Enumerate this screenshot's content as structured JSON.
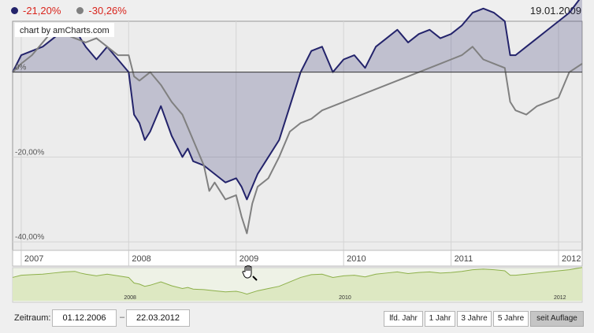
{
  "legend": {
    "series_a": {
      "value": "-21,20%",
      "color": "#23236b"
    },
    "series_b": {
      "value": "-30,26%",
      "color": "#808080"
    }
  },
  "cursor_date": "19.01.2009",
  "watermark": "chart by amCharts.com",
  "chart_data": {
    "type": "line",
    "title": "",
    "y_unit": "%",
    "ylim": [
      -42,
      12
    ],
    "y_ticks": [
      {
        "value": 0,
        "label": "0%"
      },
      {
        "value": -20,
        "label": "-20,00%"
      },
      {
        "value": -40,
        "label": "-40,00%"
      }
    ],
    "x_range": [
      2006.92,
      2012.22
    ],
    "x_ticks": [
      "2007",
      "2008",
      "2009",
      "2010",
      "2011",
      "2012"
    ],
    "x_tick_values": [
      2007,
      2008,
      2009,
      2010,
      2011,
      2012
    ],
    "series": [
      {
        "name": "series_a",
        "color": "#23236b",
        "fill": "rgba(35,35,107,0.22)",
        "x": [
          2006.92,
          2007.0,
          2007.1,
          2007.2,
          2007.3,
          2007.4,
          2007.5,
          2007.55,
          2007.6,
          2007.7,
          2007.8,
          2007.9,
          2008.0,
          2008.05,
          2008.1,
          2008.15,
          2008.2,
          2008.3,
          2008.4,
          2008.5,
          2008.55,
          2008.6,
          2008.7,
          2008.8,
          2008.9,
          2009.0,
          2009.05,
          2009.1,
          2009.2,
          2009.3,
          2009.4,
          2009.5,
          2009.6,
          2009.7,
          2009.8,
          2009.9,
          2010.0,
          2010.1,
          2010.2,
          2010.3,
          2010.4,
          2010.5,
          2010.6,
          2010.7,
          2010.8,
          2010.9,
          2011.0,
          2011.1,
          2011.2,
          2011.3,
          2011.4,
          2011.5,
          2011.55,
          2011.6,
          2011.7,
          2011.8,
          2011.9,
          2012.0,
          2012.1,
          2012.22
        ],
        "values": [
          0,
          4,
          5,
          6,
          8,
          10,
          11,
          8,
          6,
          3,
          6,
          3,
          0,
          -10,
          -12,
          -16,
          -14,
          -8,
          -15,
          -20,
          -18,
          -21,
          -22,
          -24,
          -26,
          -25,
          -27,
          -30,
          -24,
          -20,
          -16,
          -8,
          0,
          5,
          6,
          0,
          3,
          4,
          1,
          6,
          8,
          10,
          7,
          9,
          10,
          8,
          9,
          11,
          14,
          15,
          14,
          12,
          4,
          4,
          6,
          8,
          10,
          12,
          14,
          18
        ]
      },
      {
        "name": "series_b",
        "color": "#808080",
        "fill": "none",
        "x": [
          2006.92,
          2007.0,
          2007.1,
          2007.2,
          2007.3,
          2007.4,
          2007.5,
          2007.6,
          2007.7,
          2007.8,
          2007.9,
          2008.0,
          2008.05,
          2008.1,
          2008.2,
          2008.3,
          2008.4,
          2008.5,
          2008.6,
          2008.7,
          2008.75,
          2008.8,
          2008.9,
          2009.0,
          2009.05,
          2009.1,
          2009.15,
          2009.2,
          2009.3,
          2009.4,
          2009.5,
          2009.6,
          2009.7,
          2009.8,
          2009.9,
          2010.0,
          2010.1,
          2010.2,
          2010.3,
          2010.4,
          2010.5,
          2010.6,
          2010.7,
          2010.8,
          2010.9,
          2011.0,
          2011.1,
          2011.2,
          2011.3,
          2011.4,
          2011.5,
          2011.55,
          2011.6,
          2011.7,
          2011.8,
          2011.9,
          2012.0,
          2012.1,
          2012.22
        ],
        "values": [
          0,
          2,
          4,
          7,
          10,
          9,
          8,
          7,
          8,
          6,
          4,
          4,
          -1,
          -2,
          0,
          -3,
          -7,
          -10,
          -16,
          -22,
          -28,
          -26,
          -30,
          -29,
          -34,
          -38,
          -31,
          -27,
          -25,
          -20,
          -14,
          -12,
          -11,
          -9,
          -8,
          -7,
          -6,
          -5,
          -4,
          -3,
          -2,
          -1,
          0,
          1,
          2,
          3,
          4,
          6,
          3,
          2,
          1,
          -7,
          -9,
          -10,
          -8,
          -7,
          -6,
          0,
          2
        ]
      }
    ]
  },
  "navigator": {
    "x_ticks": [
      "2008",
      "2010",
      "2012"
    ],
    "x_tick_values": [
      2008,
      2010,
      2012
    ]
  },
  "controls": {
    "range_label": "Zeitraum:",
    "date_from": "01.12.2006",
    "date_separator": "–",
    "date_to": "22.03.2012",
    "buttons": [
      "lfd. Jahr",
      "1 Jahr",
      "3 Jahre",
      "5 Jahre",
      "seit Auflage"
    ],
    "active_button": "seit Auflage"
  }
}
